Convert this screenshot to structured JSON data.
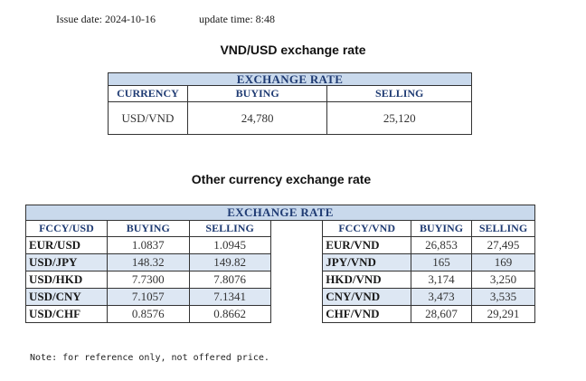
{
  "issue_date": "Issue date: 2024-10-16",
  "update_time": "update time: 8:48",
  "title_main": "VND/USD exchange rate",
  "table_main": {
    "band": "EXCHANGE RATE",
    "headers": [
      "CURRENCY",
      "BUYING",
      "SELLING"
    ],
    "row": {
      "currency": "USD/VND",
      "buying": "24,780",
      "selling": "25,120"
    }
  },
  "title_other": "Other currency exchange rate",
  "table_other": {
    "band": "EXCHANGE  RATE",
    "headers_left": [
      "FCCY/USD",
      "BUYING",
      "SELLING"
    ],
    "headers_right": [
      "FCCY/VND",
      "BUYING",
      "SELLING"
    ],
    "rows": [
      {
        "l_name": "EUR/USD",
        "l_buy": "1.0837",
        "l_sell": "1.0945",
        "r_name": "EUR/VND",
        "r_buy": "26,853",
        "r_sell": "27,495"
      },
      {
        "l_name": "USD/JPY",
        "l_buy": "148.32",
        "l_sell": "149.82",
        "r_name": "JPY/VND",
        "r_buy": "165",
        "r_sell": "169"
      },
      {
        "l_name": "USD/HKD",
        "l_buy": "7.7300",
        "l_sell": "7.8076",
        "r_name": "HKD/VND",
        "r_buy": "3,174",
        "r_sell": "3,250"
      },
      {
        "l_name": "USD/CNY",
        "l_buy": "7.1057",
        "l_sell": "7.1341",
        "r_name": "CNY/VND",
        "r_buy": "3,473",
        "r_sell": "3,535"
      },
      {
        "l_name": "USD/CHF",
        "l_buy": "0.8576",
        "l_sell": "0.8662",
        "r_name": "CHF/VND",
        "r_buy": "28,607",
        "r_sell": "29,291"
      }
    ]
  },
  "note": "Note: for reference only, not offered price.",
  "colors": {
    "band_bg": "#c9d9ec",
    "header_text": "#1f3b73",
    "row_shade": "#dde7f3"
  }
}
